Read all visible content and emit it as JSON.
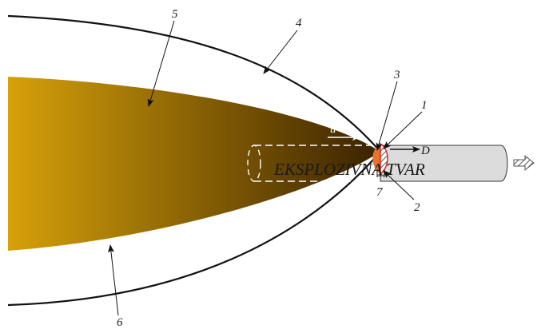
{
  "diagram": {
    "charge_label": "EKSPLOZIVNA TVAR",
    "velocity_u_label": "u",
    "velocity_d_label": "D",
    "callouts": {
      "c1": "1",
      "c2": "2",
      "c3": "3",
      "c4": "4",
      "c5": "5",
      "c6": "6",
      "c7": "7"
    },
    "colors": {
      "products_light": "#d7a10a",
      "products_dark": "#3a2200",
      "reaction_zone": "#e8742c",
      "shock_front": "#d32020",
      "charge_fill": "#dcdcdc",
      "outline": "#111111"
    }
  }
}
